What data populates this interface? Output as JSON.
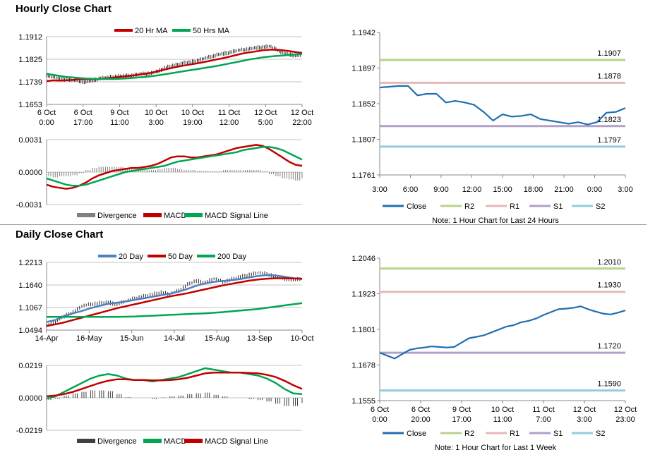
{
  "hourly": {
    "title": "Hourly Close Chart",
    "price": {
      "ylim": [
        1.1653,
        1.1912
      ],
      "yticks": [
        "1.1912",
        "1.1825",
        "1.1739",
        "1.1653"
      ],
      "xticks": [
        [
          "6 Oct",
          "0:00"
        ],
        [
          "6 Oct",
          "17:00"
        ],
        [
          "9 Oct",
          "11:00"
        ],
        [
          "10 Oct",
          "3:00"
        ],
        [
          "10 Oct",
          "19:00"
        ],
        [
          "11 Oct",
          "12:00"
        ],
        [
          "12 Oct",
          "5:00"
        ],
        [
          "12 Oct",
          "22:00"
        ]
      ],
      "legend": [
        {
          "name": "20 Hr MA",
          "color": "#c00000"
        },
        {
          "name": "50 Hrs MA",
          "color": "#00a651"
        }
      ],
      "close": [
        1.1765,
        1.1758,
        1.1752,
        1.1748,
        1.1745,
        1.1742,
        1.1738,
        1.1745,
        1.1752,
        1.1755,
        1.1758,
        1.176,
        1.1762,
        1.1763,
        1.1768,
        1.177,
        1.1772,
        1.178,
        1.1792,
        1.18,
        1.1805,
        1.1812,
        1.1815,
        1.182,
        1.1828,
        1.1835,
        1.1842,
        1.1848,
        1.1852,
        1.1858,
        1.1862,
        1.1865,
        1.187,
        1.1872,
        1.1875,
        1.1865,
        1.185,
        1.1845,
        1.184,
        1.1842
      ],
      "ma20": [
        1.1742,
        1.1745,
        1.1744,
        1.1745,
        1.1747,
        1.1749,
        1.175,
        1.1749,
        1.175,
        1.1752,
        1.1755,
        1.1758,
        1.176,
        1.1763,
        1.1766,
        1.177,
        1.1774,
        1.178,
        1.1786,
        1.1792,
        1.1797,
        1.1802,
        1.1806,
        1.181,
        1.1815,
        1.182,
        1.1825,
        1.183,
        1.1836,
        1.1842,
        1.1848,
        1.1852,
        1.1856,
        1.186,
        1.1862,
        1.1862,
        1.186,
        1.1857,
        1.1853,
        1.185
      ],
      "ma50": [
        1.177,
        1.1766,
        1.1762,
        1.1758,
        1.1756,
        1.1754,
        1.1752,
        1.1751,
        1.175,
        1.175,
        1.175,
        1.1751,
        1.1752,
        1.1754,
        1.1756,
        1.1758,
        1.1761,
        1.1764,
        1.1768,
        1.1772,
        1.1776,
        1.178,
        1.1784,
        1.1788,
        1.1792,
        1.1796,
        1.18,
        1.1805,
        1.181,
        1.1815,
        1.182,
        1.1825,
        1.1829,
        1.1833,
        1.1836,
        1.1838,
        1.184,
        1.1842,
        1.1844,
        1.1846
      ]
    },
    "macd": {
      "ylim": [
        -0.0031,
        0.0031
      ],
      "yticks": [
        "0.0031",
        "0.0000",
        "-0.0031"
      ],
      "legend": [
        {
          "name": "Divergence",
          "color": "#808080"
        },
        {
          "name": "MACD",
          "color": "#c00000"
        },
        {
          "name": "MACD Signal Line",
          "color": "#00a651"
        }
      ],
      "macd": [
        -0.0012,
        -0.0014,
        -0.0015,
        -0.0016,
        -0.0015,
        -0.0013,
        -0.001,
        -0.0006,
        -0.0003,
        -0.0001,
        0.0001,
        0.0002,
        0.0003,
        0.0004,
        0.0004,
        0.0005,
        0.0006,
        0.0008,
        0.0011,
        0.0014,
        0.0015,
        0.0015,
        0.0014,
        0.0014,
        0.0015,
        0.0016,
        0.0017,
        0.0019,
        0.0021,
        0.0023,
        0.0024,
        0.0025,
        0.0026,
        0.0025,
        0.0022,
        0.0018,
        0.0014,
        0.001,
        0.0007,
        0.0006
      ],
      "signal": [
        -0.0006,
        -0.0008,
        -0.001,
        -0.0012,
        -0.0013,
        -0.0013,
        -0.0012,
        -0.001,
        -0.0008,
        -0.0006,
        -0.0004,
        -0.0002,
        0.0,
        0.0001,
        0.0002,
        0.0003,
        0.0004,
        0.0005,
        0.0006,
        0.0008,
        0.001,
        0.0011,
        0.0012,
        0.0013,
        0.0014,
        0.0015,
        0.0016,
        0.0017,
        0.0018,
        0.0019,
        0.0021,
        0.0022,
        0.0023,
        0.0024,
        0.0024,
        0.0023,
        0.0021,
        0.0018,
        0.0015,
        0.0012
      ],
      "divergence": [
        -0.0004,
        -0.0005,
        -0.0004,
        -0.0004,
        -0.0003,
        -0.0001,
        0.0002,
        0.0004,
        0.0005,
        0.0005,
        0.0005,
        0.0005,
        0.0004,
        0.0003,
        0.0002,
        0.0002,
        0.0002,
        0.0003,
        0.0004,
        0.0004,
        0.0003,
        0.0002,
        0.0002,
        0.0001,
        0.0001,
        0.0001,
        0.0001,
        0.0002,
        0.0002,
        0.0002,
        0.0002,
        0.0002,
        0.0002,
        0.0001,
        -0.0002,
        -0.0004,
        -0.0006,
        -0.0007,
        -0.0008,
        -0.0006
      ]
    },
    "pivot": {
      "ylim": [
        1.1761,
        1.1942
      ],
      "yticks": [
        "1.1942",
        "1.1897",
        "1.1852",
        "1.1807",
        "1.1761"
      ],
      "xticks": [
        "3:00",
        "6:00",
        "9:00",
        "12:00",
        "15:00",
        "18:00",
        "21:00",
        "0:00",
        "3:00"
      ],
      "levels": [
        {
          "name": "R2",
          "value": 1.1907,
          "label": "1.1907",
          "color": "#b9d38a"
        },
        {
          "name": "R1",
          "value": 1.1878,
          "label": "1.1878",
          "color": "#e6b8b7"
        },
        {
          "name": "S1",
          "value": 1.1823,
          "label": "1.1823",
          "color": "#b1a0c7"
        },
        {
          "name": "S2",
          "value": 1.1797,
          "label": "1.1797",
          "color": "#93cddd"
        }
      ],
      "close_name": "Close",
      "close_color": "#1f6fb2",
      "close": [
        1.1872,
        1.1873,
        1.1874,
        1.1874,
        1.1862,
        1.1864,
        1.1864,
        1.1853,
        1.1855,
        1.1853,
        1.185,
        1.1841,
        1.183,
        1.1838,
        1.1835,
        1.1836,
        1.1838,
        1.1832,
        1.183,
        1.1828,
        1.1826,
        1.1828,
        1.1825,
        1.1828,
        1.184,
        1.1841,
        1.1846
      ],
      "note": "Note: 1 Hour Chart for Last 24 Hours"
    }
  },
  "daily": {
    "title": "Daily Close Chart",
    "price": {
      "ylim": [
        1.0494,
        1.2213
      ],
      "yticks": [
        "1.2213",
        "1.1640",
        "1.1067",
        "1.0494"
      ],
      "xticks": [
        "14-Apr",
        "16-May",
        "15-Jun",
        "14-Jul",
        "15-Aug",
        "13-Sep",
        "10-Oct"
      ],
      "legend": [
        {
          "name": "20 Day",
          "color": "#4f81bd"
        },
        {
          "name": "50 Day",
          "color": "#c00000"
        },
        {
          "name": "200 Day",
          "color": "#00a651"
        }
      ],
      "close": [
        1.062,
        1.07,
        1.085,
        1.095,
        1.11,
        1.115,
        1.118,
        1.12,
        1.115,
        1.123,
        1.13,
        1.135,
        1.14,
        1.145,
        1.14,
        1.15,
        1.165,
        1.175,
        1.17,
        1.18,
        1.172,
        1.178,
        1.185,
        1.19,
        1.195,
        1.192,
        1.185,
        1.18,
        1.178,
        1.179
      ],
      "ma20": [
        1.07,
        1.075,
        1.085,
        1.092,
        1.098,
        1.105,
        1.111,
        1.116,
        1.119,
        1.122,
        1.126,
        1.13,
        1.134,
        1.138,
        1.142,
        1.147,
        1.154,
        1.162,
        1.168,
        1.172,
        1.174,
        1.176,
        1.179,
        1.183,
        1.187,
        1.189,
        1.188,
        1.185,
        1.181,
        1.179
      ],
      "ma50": [
        1.06,
        1.064,
        1.069,
        1.075,
        1.081,
        1.087,
        1.093,
        1.099,
        1.105,
        1.11,
        1.115,
        1.12,
        1.125,
        1.13,
        1.135,
        1.139,
        1.143,
        1.148,
        1.153,
        1.158,
        1.163,
        1.167,
        1.171,
        1.175,
        1.178,
        1.18,
        1.181,
        1.181,
        1.1805,
        1.18
      ],
      "ma200": [
        1.083,
        1.083,
        1.083,
        1.083,
        1.083,
        1.083,
        1.083,
        1.083,
        1.083,
        1.0835,
        1.084,
        1.085,
        1.086,
        1.087,
        1.088,
        1.089,
        1.09,
        1.091,
        1.092,
        1.0935,
        1.095,
        1.097,
        1.099,
        1.101,
        1.103,
        1.106,
        1.109,
        1.112,
        1.115,
        1.118
      ]
    },
    "macd": {
      "ylim": [
        -0.0219,
        0.0219
      ],
      "yticks": [
        "0.0219",
        "0.0000",
        "-0.0219"
      ],
      "legend": [
        {
          "name": "Divergence",
          "color": "#404040"
        },
        {
          "name": "MACD",
          "color": "#00a651"
        },
        {
          "name": "MACD Signal Line",
          "color": "#c00000"
        }
      ],
      "macd": [
        -0.0005,
        0.001,
        0.004,
        0.007,
        0.01,
        0.013,
        0.015,
        0.016,
        0.015,
        0.013,
        0.012,
        0.012,
        0.011,
        0.012,
        0.013,
        0.014,
        0.016,
        0.018,
        0.02,
        0.019,
        0.018,
        0.017,
        0.017,
        0.016,
        0.015,
        0.013,
        0.01,
        0.006,
        0.003,
        0.0025
      ],
      "signal": [
        0.001,
        0.0015,
        0.0025,
        0.004,
        0.006,
        0.008,
        0.01,
        0.0115,
        0.0125,
        0.0125,
        0.012,
        0.012,
        0.0118,
        0.0118,
        0.012,
        0.0125,
        0.0135,
        0.015,
        0.0165,
        0.017,
        0.017,
        0.017,
        0.017,
        0.0168,
        0.0165,
        0.0155,
        0.014,
        0.0115,
        0.0085,
        0.006
      ],
      "divergence": [
        -0.0015,
        -0.0005,
        0.0015,
        0.003,
        0.004,
        0.005,
        0.005,
        0.0045,
        0.0025,
        0.0005,
        0.0,
        0.0,
        -0.0008,
        0.0002,
        0.001,
        0.0015,
        0.0025,
        0.003,
        0.0035,
        0.002,
        0.001,
        0.0,
        0.0,
        -0.0008,
        -0.0015,
        -0.0025,
        -0.004,
        -0.0055,
        -0.0055,
        -0.0035
      ]
    },
    "pivot": {
      "ylim": [
        1.1555,
        1.2046
      ],
      "yticks": [
        "1.2046",
        "1.1923",
        "1.1801",
        "1.1678",
        "1.1555"
      ],
      "xticks": [
        [
          "6 Oct",
          "0:00"
        ],
        [
          "6 Oct",
          "20:00"
        ],
        [
          "9 Oct",
          "17:00"
        ],
        [
          "10 Oct",
          "11:00"
        ],
        [
          "11 Oct",
          "7:00"
        ],
        [
          "12 Oct",
          "3:00"
        ],
        [
          "12 Oct",
          "23:00"
        ]
      ],
      "levels": [
        {
          "name": "R2",
          "value": 1.201,
          "label": "1.2010",
          "color": "#b9d38a"
        },
        {
          "name": "R1",
          "value": 1.193,
          "label": "1.1930",
          "color": "#e6b8b7"
        },
        {
          "name": "S1",
          "value": 1.172,
          "label": "1.1720",
          "color": "#b1a0c7"
        },
        {
          "name": "S2",
          "value": 1.159,
          "label": "1.1590",
          "color": "#93cddd"
        }
      ],
      "close_name": "Close",
      "close_color": "#1f6fb2",
      "close": [
        1.172,
        1.171,
        1.17,
        1.1715,
        1.173,
        1.1735,
        1.1738,
        1.1742,
        1.174,
        1.1738,
        1.174,
        1.1755,
        1.177,
        1.1775,
        1.178,
        1.179,
        1.18,
        1.181,
        1.1815,
        1.1825,
        1.183,
        1.1838,
        1.185,
        1.186,
        1.187,
        1.1872,
        1.1875,
        1.188,
        1.187,
        1.1862,
        1.1855,
        1.1852,
        1.1858,
        1.1866
      ],
      "note": "Note: 1 Hour Chart for Last 1 Week"
    }
  }
}
